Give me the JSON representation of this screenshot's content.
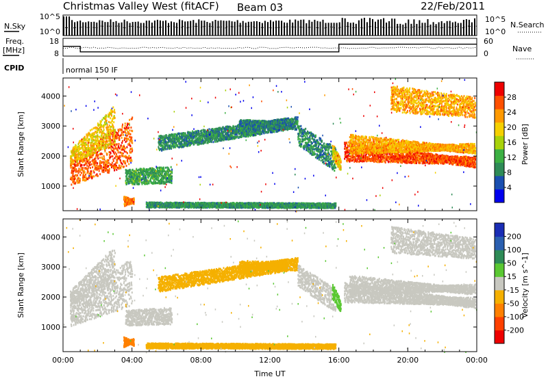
{
  "header": {
    "station": "Christmas Valley West (fitACF)",
    "beam": "Beam 03",
    "date": "22/Feb/2011"
  },
  "noise_panel": {
    "left_label": "N.Sky",
    "right_label": "N.Search",
    "left_ticks": [
      "10^5",
      "10^0"
    ],
    "right_ticks": [
      "10^5",
      "10^0"
    ]
  },
  "freq_panel": {
    "left_label_1": "Freq.",
    "left_label_2": "[MHz]",
    "left_ticks": [
      "18",
      "8"
    ],
    "right_label": "Nave",
    "right_ticks": [
      "60",
      "0"
    ],
    "steps_hours": [
      [
        0,
        13.5
      ],
      [
        1.0,
        10.4
      ],
      [
        16.0,
        14.7
      ],
      [
        24,
        14.7
      ]
    ]
  },
  "cpid": {
    "label": "CPID",
    "program": "normal 150 IF"
  },
  "colors": {
    "power_scale": [
      "#0000ee",
      "#1a4fb0",
      "#2e8b57",
      "#3cb043",
      "#a8d20a",
      "#f5d000",
      "#ff9900",
      "#ff5000",
      "#ee0000"
    ],
    "velocity_scale": [
      "#1a2db5",
      "#2a5fb0",
      "#2e8b57",
      "#5ac832",
      "#c8c8c0",
      "#f5b000",
      "#ff8000",
      "#ff4000",
      "#ee0000"
    ]
  },
  "chart_data": [
    {
      "type": "heatmap",
      "name": "power",
      "ylabel": "Slant Range [km]",
      "xlabel": "",
      "ylim": [
        180,
        4600
      ],
      "xlim": [
        0,
        24
      ],
      "y_ticks": [
        "1000",
        "2000",
        "3000",
        "4000"
      ],
      "colorbar": {
        "label": "Power [dB]",
        "ticks": [
          "28",
          "24",
          "20",
          "16",
          "12",
          "8",
          "4"
        ],
        "range": [
          0,
          32
        ]
      },
      "regions": [
        {
          "x": [
            0.4,
            4.0
          ],
          "y0": [
            1050,
            1750
          ],
          "y1": [
            1650,
            3050
          ],
          "w": 280,
          "v": 26
        },
        {
          "x": [
            0.4,
            3.0
          ],
          "y0": [
            1750,
            2450
          ],
          "y1": [
            2050,
            3550
          ],
          "w": 180,
          "v": 20
        },
        {
          "x": [
            3.6,
            6.3
          ],
          "y0": [
            1080,
            1120
          ],
          "y1": [
            1400,
            1500
          ],
          "w": 180,
          "v": 11
        },
        {
          "x": [
            5.5,
            13.0
          ],
          "y0": [
            2200,
            2900
          ],
          "y1": [
            2400,
            3000
          ],
          "w": 300,
          "v": 9
        },
        {
          "x": [
            10.2,
            13.6
          ],
          "y0": [
            2800,
            3100
          ],
          "y1": [
            3000,
            2900
          ],
          "w": 250,
          "v": 8
        },
        {
          "x": [
            13.6,
            15.8
          ],
          "y0": [
            2800,
            2000
          ],
          "y1": [
            2400,
            1500
          ],
          "w": 300,
          "v": 9
        },
        {
          "x": [
            15.6,
            16.1
          ],
          "y0": [
            2200,
            1600
          ],
          "y1": [
            1950,
            1500
          ],
          "w": 300,
          "v": 20
        },
        {
          "x": [
            16.3,
            23.9
          ],
          "y0": [
            1850,
            1750
          ],
          "y1": [
            2250,
            1650
          ],
          "w": 260,
          "v": 27
        },
        {
          "x": [
            16.6,
            23.9
          ],
          "y0": [
            2100,
            2250
          ],
          "y1": [
            2550,
            2100
          ],
          "w": 200,
          "v": 22
        },
        {
          "x": [
            19.0,
            23.9
          ],
          "y0": [
            4200,
            3800
          ],
          "y1": [
            3500,
            3300
          ],
          "w": 180,
          "v": 22
        },
        {
          "x": [
            4.8,
            15.8
          ],
          "y0": [
            320,
            300
          ],
          "y1": [
            330,
            300
          ],
          "w": 160,
          "v": 10
        },
        {
          "x": [
            3.5,
            4.1
          ],
          "y0": [
            350,
            500
          ],
          "y1": [
            550,
            400
          ],
          "w": 150,
          "v": 25
        }
      ]
    },
    {
      "type": "heatmap",
      "name": "velocity",
      "ylabel": "Slant Range [km]",
      "xlabel": "Time UT",
      "ylim": [
        180,
        4600
      ],
      "xlim": [
        0,
        24
      ],
      "y_ticks": [
        "1000",
        "2000",
        "3000",
        "4000"
      ],
      "x_ticks": [
        "00:00",
        "04:00",
        "08:00",
        "12:00",
        "16:00",
        "20:00",
        "00:00"
      ],
      "colorbar": {
        "label": "Velocity [m s^-1]",
        "ticks": [
          "200",
          "100",
          "50",
          "15",
          "-15",
          "-50",
          "-100",
          "-200"
        ],
        "bounds": [
          -300,
          -200,
          -100,
          -50,
          -15,
          15,
          50,
          100,
          200,
          300
        ]
      },
      "regions": [
        {
          "x": [
            0.4,
            4.0
          ],
          "y0": [
            1050,
            1750
          ],
          "y1": [
            1650,
            3050
          ],
          "w": 280,
          "v": 0
        },
        {
          "x": [
            0.4,
            3.0
          ],
          "y0": [
            1750,
            2450
          ],
          "y1": [
            2050,
            3550
          ],
          "w": 180,
          "v": -10
        },
        {
          "x": [
            3.6,
            6.3
          ],
          "y0": [
            1080,
            1120
          ],
          "y1": [
            1400,
            1500
          ],
          "w": 180,
          "v": 5
        },
        {
          "x": [
            5.5,
            13.0
          ],
          "y0": [
            2200,
            2900
          ],
          "y1": [
            2400,
            3000
          ],
          "w": 300,
          "v": -20
        },
        {
          "x": [
            10.2,
            13.6
          ],
          "y0": [
            2800,
            3100
          ],
          "y1": [
            3000,
            2900
          ],
          "w": 250,
          "v": -30
        },
        {
          "x": [
            13.6,
            15.8
          ],
          "y0": [
            2800,
            2000
          ],
          "y1": [
            2400,
            1500
          ],
          "w": 300,
          "v": -10
        },
        {
          "x": [
            15.6,
            16.1
          ],
          "y0": [
            2200,
            1600
          ],
          "y1": [
            1950,
            1500
          ],
          "w": 300,
          "v": 40
        },
        {
          "x": [
            16.3,
            23.9
          ],
          "y0": [
            1850,
            1750
          ],
          "y1": [
            2250,
            1650
          ],
          "w": 260,
          "v": 0
        },
        {
          "x": [
            16.6,
            23.9
          ],
          "y0": [
            2100,
            2250
          ],
          "y1": [
            2550,
            2100
          ],
          "w": 200,
          "v": -5
        },
        {
          "x": [
            19.0,
            23.9
          ],
          "y0": [
            4200,
            3800
          ],
          "y1": [
            3500,
            3300
          ],
          "w": 180,
          "v": -5
        },
        {
          "x": [
            4.8,
            15.8
          ],
          "y0": [
            320,
            300
          ],
          "y1": [
            330,
            300
          ],
          "w": 160,
          "v": -40
        },
        {
          "x": [
            3.5,
            4.1
          ],
          "y0": [
            350,
            500
          ],
          "y1": [
            550,
            400
          ],
          "w": 150,
          "v": -60
        }
      ]
    }
  ]
}
